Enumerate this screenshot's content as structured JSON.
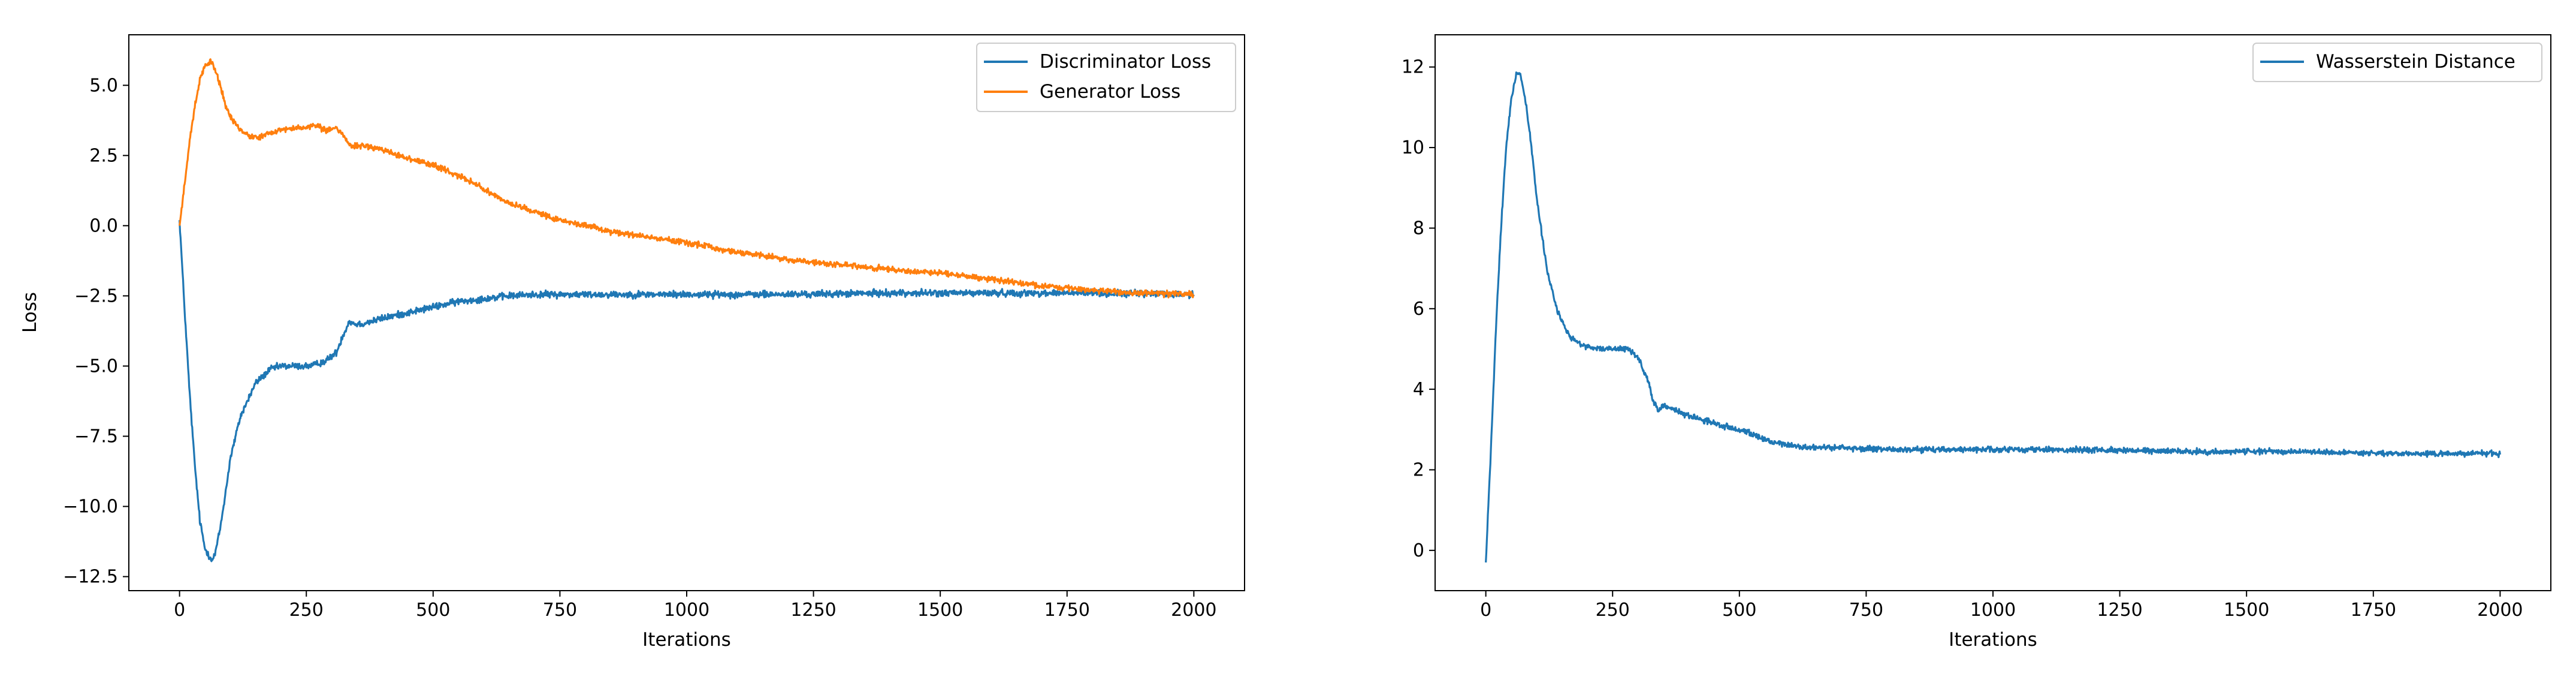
{
  "chart_data": [
    {
      "type": "line",
      "title": "",
      "xlabel": "Iterations",
      "ylabel": "Loss",
      "xlim": [
        -100,
        2100
      ],
      "ylim": [
        -13.0,
        6.8
      ],
      "xticks": [
        0,
        250,
        500,
        750,
        1000,
        1250,
        1500,
        1750,
        2000
      ],
      "xtick_labels": [
        "0",
        "250",
        "500",
        "750",
        "1000",
        "1250",
        "1500",
        "1750",
        "2000"
      ],
      "yticks": [
        -12.5,
        -10.0,
        -7.5,
        -5.0,
        -2.5,
        0.0,
        2.5,
        5.0
      ],
      "ytick_labels": [
        "−12.5",
        "−10.0",
        "−7.5",
        "−5.0",
        "−2.5",
        "0.0",
        "2.5",
        "5.0"
      ],
      "grid": false,
      "legend_position": "top-right",
      "series": [
        {
          "name": "Discriminator Loss",
          "color": "#1f77b4",
          "noise": 0.12,
          "x": [
            0,
            10,
            20,
            30,
            40,
            50,
            60,
            65,
            70,
            80,
            90,
            100,
            120,
            150,
            180,
            200,
            230,
            260,
            290,
            310,
            320,
            330,
            335,
            345,
            360,
            400,
            450,
            500,
            550,
            600,
            650,
            700,
            800,
            900,
            1000,
            1200,
            1400,
            1600,
            1800,
            2000
          ],
          "y": [
            0.2,
            -3.0,
            -6.0,
            -8.5,
            -10.5,
            -11.5,
            -11.8,
            -11.9,
            -11.7,
            -10.8,
            -9.6,
            -8.3,
            -6.8,
            -5.6,
            -5.1,
            -5.0,
            -5.0,
            -5.0,
            -4.8,
            -4.5,
            -4.0,
            -3.6,
            -3.4,
            -3.5,
            -3.5,
            -3.3,
            -3.1,
            -2.9,
            -2.7,
            -2.6,
            -2.5,
            -2.45,
            -2.45,
            -2.45,
            -2.45,
            -2.45,
            -2.4,
            -2.4,
            -2.4,
            -2.45
          ]
        },
        {
          "name": "Generator Loss",
          "color": "#ff7f0e",
          "noise": 0.1,
          "x": [
            0,
            10,
            20,
            30,
            40,
            50,
            60,
            70,
            80,
            90,
            100,
            120,
            140,
            160,
            180,
            200,
            240,
            270,
            290,
            310,
            320,
            330,
            340,
            360,
            400,
            450,
            500,
            550,
            600,
            650,
            700,
            750,
            800,
            850,
            900,
            1000,
            1100,
            1200,
            1300,
            1400,
            1500,
            1600,
            1700,
            1800,
            1900,
            2000
          ],
          "y": [
            0.0,
            1.5,
            3.0,
            4.3,
            5.2,
            5.7,
            5.85,
            5.6,
            5.0,
            4.3,
            3.9,
            3.4,
            3.15,
            3.15,
            3.3,
            3.4,
            3.5,
            3.55,
            3.4,
            3.5,
            3.3,
            3.0,
            2.8,
            2.85,
            2.7,
            2.4,
            2.15,
            1.8,
            1.3,
            0.8,
            0.5,
            0.2,
            0.0,
            -0.2,
            -0.35,
            -0.6,
            -0.95,
            -1.2,
            -1.4,
            -1.55,
            -1.7,
            -1.9,
            -2.15,
            -2.3,
            -2.4,
            -2.45
          ]
        }
      ]
    },
    {
      "type": "line",
      "title": "",
      "xlabel": "Iterations",
      "ylabel": "",
      "xlim": [
        -100,
        2100
      ],
      "ylim": [
        -1.0,
        12.8
      ],
      "xticks": [
        0,
        250,
        500,
        750,
        1000,
        1250,
        1500,
        1750,
        2000
      ],
      "xtick_labels": [
        "0",
        "250",
        "500",
        "750",
        "1000",
        "1250",
        "1500",
        "1750",
        "2000"
      ],
      "yticks": [
        0,
        2,
        4,
        6,
        8,
        10,
        12
      ],
      "ytick_labels": [
        "0",
        "2",
        "4",
        "6",
        "8",
        "10",
        "12"
      ],
      "grid": false,
      "legend_position": "top-right",
      "series": [
        {
          "name": "Wasserstein Distance",
          "color": "#1f77b4",
          "noise": 0.07,
          "x": [
            0,
            10,
            20,
            30,
            40,
            50,
            60,
            65,
            70,
            80,
            90,
            100,
            120,
            140,
            160,
            180,
            200,
            230,
            260,
            280,
            300,
            320,
            330,
            340,
            350,
            370,
            400,
            450,
            500,
            550,
            600,
            650,
            700,
            800,
            1000,
            1200,
            1400,
            1600,
            1800,
            2000
          ],
          "y": [
            -0.3,
            2.5,
            5.5,
            8.0,
            10.0,
            11.2,
            11.8,
            11.9,
            11.7,
            11.0,
            10.0,
            8.8,
            7.0,
            6.0,
            5.4,
            5.15,
            5.05,
            5.0,
            5.0,
            5.0,
            4.8,
            4.2,
            3.7,
            3.45,
            3.6,
            3.5,
            3.35,
            3.15,
            3.0,
            2.75,
            2.6,
            2.55,
            2.55,
            2.5,
            2.5,
            2.5,
            2.45,
            2.45,
            2.4,
            2.4
          ]
        }
      ]
    }
  ]
}
